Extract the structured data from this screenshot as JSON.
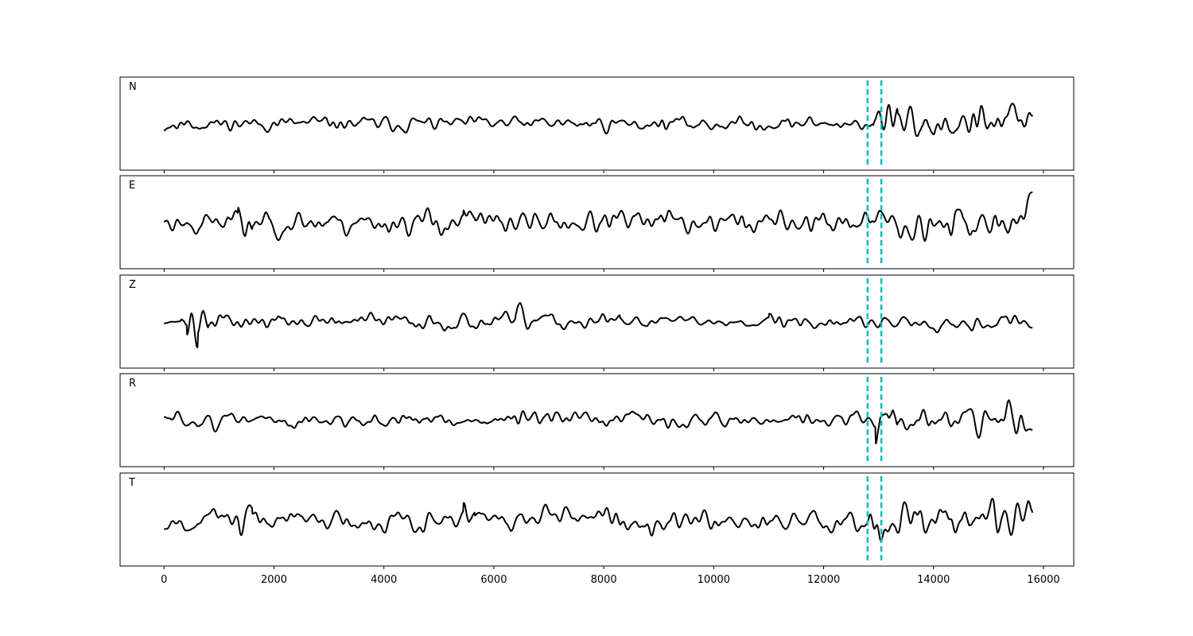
{
  "chart_data": {
    "type": "line",
    "title": "",
    "xlabel": "",
    "ylabel": "",
    "xlim": [
      -800,
      16550
    ],
    "x_ticks": [
      0,
      2000,
      4000,
      6000,
      8000,
      10000,
      12000,
      14000,
      16000
    ],
    "x_tick_labels": [
      "0",
      "2000",
      "4000",
      "6000",
      "8000",
      "10000",
      "12000",
      "14000",
      "16000"
    ],
    "x_extent": [
      0,
      15800
    ],
    "grid": false,
    "line_color": "#000000",
    "marker_color": "#00bfbf",
    "markers": [
      12800,
      13050
    ],
    "panels": [
      {
        "label": "N",
        "ylim": [
          -1.3,
          1.3
        ],
        "seed": 11,
        "base_amp": 0.28,
        "events": [
          [
            0,
            250,
            0.35
          ],
          [
            12900,
            13350,
            1.05
          ],
          [
            13350,
            15800,
            0.7
          ]
        ]
      },
      {
        "label": "E",
        "ylim": [
          -1.3,
          1.3
        ],
        "seed": 23,
        "base_amp": 0.55,
        "events": [
          [
            1350,
            1600,
            0.95
          ],
          [
            5450,
            5650,
            1.0
          ],
          [
            12800,
            15800,
            0.85
          ]
        ]
      },
      {
        "label": "Z",
        "ylim": [
          -1.3,
          1.3
        ],
        "seed": 37,
        "base_amp": 0.32,
        "events": [
          [
            0,
            300,
            0.05
          ],
          [
            420,
            620,
            1.15
          ],
          [
            620,
            800,
            0.55
          ],
          [
            6400,
            6750,
            0.6
          ],
          [
            8300,
            11000,
            0.18
          ]
        ]
      },
      {
        "label": "R",
        "ylim": [
          -1.3,
          1.3
        ],
        "seed": 51,
        "base_amp": 0.32,
        "events": [
          [
            0,
            120,
            0.35
          ],
          [
            12950,
            13350,
            1.1
          ],
          [
            13350,
            15800,
            0.65
          ]
        ]
      },
      {
        "label": "T",
        "ylim": [
          -1.3,
          1.3
        ],
        "seed": 67,
        "base_amp": 0.45,
        "events": [
          [
            1350,
            1600,
            0.85
          ],
          [
            5450,
            5650,
            0.9
          ],
          [
            12800,
            15800,
            0.85
          ]
        ]
      }
    ]
  }
}
